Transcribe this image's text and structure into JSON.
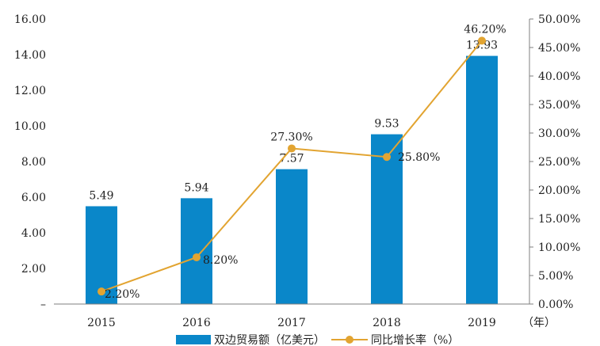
{
  "chart_data": {
    "type": "bar",
    "categories": [
      "2015",
      "2016",
      "2017",
      "2018",
      "2019"
    ],
    "x_unit": "（年）",
    "series": [
      {
        "name": "双边贸易额（亿美元）",
        "type": "bar",
        "values": [
          5.49,
          5.94,
          7.57,
          9.53,
          13.93
        ],
        "labels": [
          "5.49",
          "5.94",
          "7.57",
          "9.53",
          "13.93"
        ],
        "color": "#0a87c9"
      },
      {
        "name": "同比增长率（%）",
        "type": "line",
        "axis": "right",
        "values": [
          2.2,
          8.2,
          27.3,
          25.8,
          46.2
        ],
        "labels": [
          "2.20%",
          "8.20%",
          "27.30%",
          "25.80%",
          "46.20%"
        ],
        "color": "#e2a431"
      }
    ],
    "y_left": {
      "ylim": [
        0,
        16
      ],
      "ticks": [
        "–",
        "2.00",
        "4.00",
        "6.00",
        "8.00",
        "10.00",
        "12.00",
        "14.00",
        "16.00"
      ]
    },
    "y_right": {
      "ylim": [
        0,
        50
      ],
      "ticks": [
        "0.00%",
        "5.00%",
        "10.00%",
        "15.00%",
        "20.00%",
        "25.00%",
        "30.00%",
        "35.00%",
        "40.00%",
        "45.00%",
        "50.00%"
      ]
    },
    "grid": false,
    "legend_position": "bottom"
  }
}
